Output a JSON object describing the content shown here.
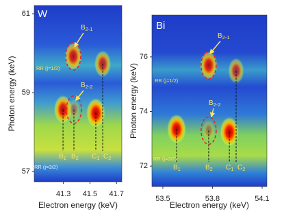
{
  "chart_data": [
    {
      "type": "heatmap",
      "panel_label": "W",
      "xlabel": "Electron energy (keV)",
      "ylabel": "Photon energy (keV)",
      "xlim": [
        41.08,
        41.74
      ],
      "ylim": [
        56.74,
        61.21
      ],
      "xticks": [
        41.3,
        41.5,
        41.7
      ],
      "yticks": [
        57,
        59,
        61
      ],
      "peaks": {
        "x": [
          41.297,
          41.379,
          41.544,
          41.596,
          41.374
        ],
        "y": [
          58.57,
          58.57,
          58.48,
          59.73,
          59.92
        ],
        "intensity": [
          0.9,
          0.15,
          1.0,
          0.7,
          0.8
        ]
      },
      "annotations": [
        {
          "text": "B",
          "sub": "2-1"
        },
        {
          "text": "RR (j=1/2)"
        },
        {
          "text": "B",
          "sub": "2-2"
        },
        {
          "text": "RR (j=3/2)"
        },
        {
          "text": "B",
          "sub": "1"
        },
        {
          "text": "B",
          "sub": "2"
        },
        {
          "text": "C",
          "sub": "1"
        },
        {
          "text": "C",
          "sub": "2"
        }
      ]
    },
    {
      "type": "heatmap",
      "panel_label": "Bi",
      "xlabel": "Electron energy (keV)",
      "ylabel": "Photon energy (keV)",
      "xlim": [
        53.434,
        54.129
      ],
      "ylim": [
        71.25,
        77.53
      ],
      "xticks": [
        53.5,
        53.8,
        54.1
      ],
      "yticks": [
        72,
        74,
        76
      ],
      "peaks": {
        "x": [
          53.583,
          53.777,
          53.902,
          53.943,
          53.777
        ],
        "y": [
          73.35,
          73.3,
          73.25,
          75.49,
          75.69
        ],
        "intensity": [
          1.0,
          0.15,
          1.0,
          0.6,
          0.85
        ]
      },
      "annotations": [
        {
          "text": "B",
          "sub": "2-1"
        },
        {
          "text": "RR (j=1/2)"
        },
        {
          "text": "B",
          "sub": "2-2"
        },
        {
          "text": "RR (j=3/2)"
        },
        {
          "text": "B",
          "sub": "1"
        },
        {
          "text": "B",
          "sub": "2"
        },
        {
          "text": "C",
          "sub": "1"
        },
        {
          "text": "C",
          "sub": "2"
        }
      ]
    }
  ]
}
